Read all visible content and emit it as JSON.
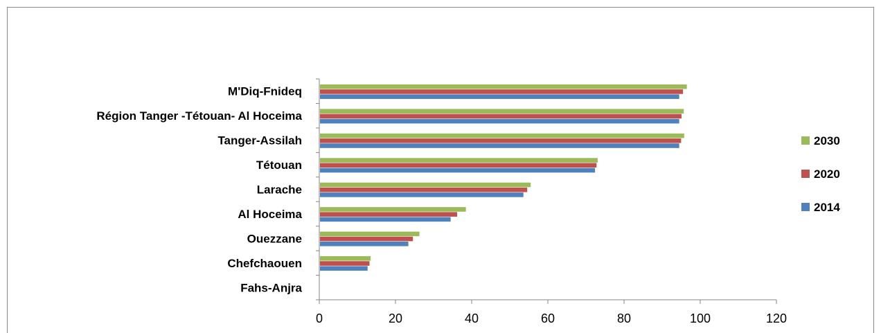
{
  "chart_data": {
    "type": "bar",
    "orientation": "horizontal",
    "categories": [
      "M'Diq-Fnideq",
      "Région Tanger -Tétouan- Al Hoceima",
      "Tanger-Assilah",
      "Tétouan",
      "Larache",
      "Al Hoceima",
      "Ouezzane",
      "Chefchaouen",
      "Fahs-Anjra"
    ],
    "series": [
      {
        "name": "2030",
        "color": "#9bbb59",
        "values": [
          96.3,
          95.5,
          95.6,
          72.9,
          55.3,
          38.3,
          26.1,
          13.3,
          0
        ]
      },
      {
        "name": "2020",
        "color": "#c0504d",
        "values": [
          95.3,
          94.9,
          94.8,
          72.6,
          54.4,
          36.0,
          24.4,
          13.0,
          0
        ]
      },
      {
        "name": "2014",
        "color": "#4f81bd",
        "values": [
          94.3,
          94.3,
          94.3,
          72.2,
          53.4,
          34.3,
          23.2,
          12.5,
          0
        ]
      }
    ],
    "x_ticks": [
      "0",
      "20",
      "40",
      "60",
      "80",
      "100",
      "120"
    ],
    "xlim": [
      0,
      120
    ],
    "title": "",
    "xlabel": "",
    "ylabel": "",
    "grid": false,
    "legend_position": "right"
  }
}
